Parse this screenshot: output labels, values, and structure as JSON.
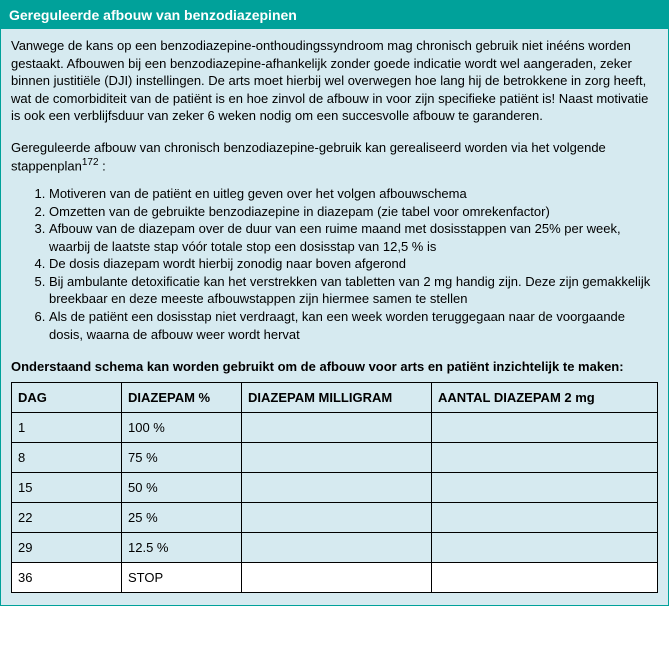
{
  "colors": {
    "header_bg": "#00A19A",
    "body_bg": "#D6EAF0",
    "border": "#000000",
    "text": "#000000",
    "header_text": "#ffffff"
  },
  "header": {
    "title": "Gereguleerde afbouw van benzodiazepinen"
  },
  "intro": {
    "paragraph1": "Vanwege de kans op een benzodiazepine-onthoudingssyndroom mag chronisch gebruik niet inééns worden gestaakt. Afbouwen bij een benzodiazepine-afhankelijk zonder goede indicatie wordt wel aangeraden, zeker binnen justitiële (DJI) instellingen. De arts moet hierbij wel overwegen hoe lang hij de betrokkene in zorg heeft, wat de comorbiditeit van de patiënt is en hoe zinvol de afbouw in voor zijn specifieke patiënt is! Naast motivatie is ook een verblijfsduur van zeker 6 weken nodig om een succesvolle afbouw te garanderen.",
    "paragraph2_a": "Gereguleerde afbouw van chronisch benzodiazepine-gebruik kan gerealiseerd worden via het volgende stappenplan",
    "paragraph2_ref": "172",
    "paragraph2_b": " :"
  },
  "steps": [
    "Motiveren van de patiënt en uitleg geven over het volgen afbouwschema",
    "Omzetten van de gebruikte benzodiazepine in diazepam  (zie tabel voor omrekenfactor)",
    "Afbouw van de diazepam over de duur van een ruime maand met dosisstappen van 25% per week, waarbij de laatste stap vóór totale stop een dosisstap van 12,5 % is",
    "De dosis diazepam wordt hierbij zonodig naar boven afgerond",
    "Bij ambulante detoxificatie kan het verstrekken van tabletten van 2 mg handig zijn. Deze zijn gemakkelijk breekbaar en deze meeste afbouwstappen zijn hiermee samen te stellen",
    "Als de patiënt een dosisstap niet verdraagt, kan een week worden teruggegaan naar de voorgaande dosis, waarna de afbouw weer wordt hervat"
  ],
  "schema": {
    "caption": "Onderstaand schema kan worden gebruikt om de afbouw voor arts en patiënt inzichtelijk te maken:",
    "columns": [
      "DAG",
      "DIAZEPAM %",
      "DIAZEPAM MILLIGRAM",
      "AANTAL DIAZEPAM 2 mg"
    ],
    "rows": [
      {
        "dag": "1",
        "pct": "100 %",
        "mg": "",
        "count": "",
        "alt": true
      },
      {
        "dag": "8",
        "pct": "75 %",
        "mg": "",
        "count": "",
        "alt": true
      },
      {
        "dag": "15",
        "pct": "50 %",
        "mg": "",
        "count": "",
        "alt": true
      },
      {
        "dag": "22",
        "pct": "25 %",
        "mg": "",
        "count": "",
        "alt": true
      },
      {
        "dag": "29",
        "pct": "12.5 %",
        "mg": "",
        "count": "",
        "alt": true
      },
      {
        "dag": "36",
        "pct": "STOP",
        "mg": "",
        "count": "",
        "alt": false
      }
    ]
  }
}
